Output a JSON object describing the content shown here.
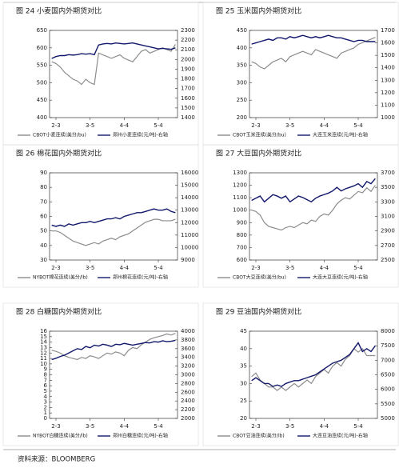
{
  "chart_data": [
    {
      "type": "line",
      "title": "图 24 小麦国内外期货对比",
      "categories": [
        null,
        "2-3",
        null,
        null,
        null,
        null,
        null,
        null,
        null,
        "3-5",
        null,
        null,
        null,
        null,
        null,
        null,
        null,
        "4-4",
        null,
        null,
        null,
        null,
        null,
        null,
        null,
        "5-4",
        null,
        null,
        null,
        null
      ],
      "series": [
        {
          "name": "CBOT小麦连续(美分/bu)",
          "color": "#8c8c8c",
          "values": [
            560,
            555,
            545,
            530,
            520,
            510,
            505,
            495,
            510,
            500,
            495,
            585,
            580,
            575,
            570,
            575,
            580,
            570,
            565,
            560,
            575,
            590,
            595,
            585,
            590,
            595,
            600,
            595,
            590,
            610
          ]
        },
        {
          "name": "郑州小麦连续(元/吨)-右轴",
          "color": "#12186b",
          "axis": "y2",
          "values": [
            2010,
            2030,
            2040,
            2040,
            2050,
            2045,
            2050,
            2060,
            2055,
            2060,
            2050,
            2150,
            2160,
            2165,
            2160,
            2170,
            2165,
            2160,
            2165,
            2170,
            2160,
            2150,
            2140,
            2130,
            2120,
            2110,
            2115,
            2110,
            2105,
            2120
          ]
        }
      ],
      "ylim": [
        400,
        650
      ],
      "yticks": [
        400,
        450,
        500,
        550,
        600,
        650
      ],
      "y2lim": [
        1400,
        2300
      ],
      "y2ticks": [
        1400,
        1500,
        1600,
        1700,
        1800,
        1900,
        2000,
        2100,
        2200,
        2300
      ]
    },
    {
      "type": "line",
      "title": "图 25 玉米国内外期货对比",
      "categories": [
        null,
        "2-3",
        null,
        null,
        null,
        null,
        null,
        null,
        null,
        "3-5",
        null,
        null,
        null,
        null,
        null,
        null,
        null,
        "4-4",
        null,
        null,
        null,
        null,
        null,
        null,
        null,
        "5-4",
        null,
        null,
        null,
        null
      ],
      "series": [
        {
          "name": "CBOT玉米连续(美分/bu)",
          "color": "#8c8c8c",
          "values": [
            360,
            355,
            345,
            340,
            350,
            360,
            365,
            370,
            360,
            375,
            380,
            385,
            390,
            385,
            380,
            395,
            390,
            385,
            380,
            375,
            370,
            385,
            390,
            395,
            400,
            410,
            415,
            420,
            425,
            430
          ]
        },
        {
          "name": "大连玉米连续(元/吨)-右轴",
          "color": "#12186b",
          "axis": "y2",
          "values": [
            1590,
            1600,
            1610,
            1620,
            1630,
            1620,
            1640,
            1640,
            1630,
            1650,
            1640,
            1650,
            1660,
            1650,
            1640,
            1650,
            1640,
            1650,
            1660,
            1650,
            1640,
            1640,
            1630,
            1620,
            1610,
            1620,
            1620,
            1610,
            1610,
            1610
          ]
        }
      ],
      "ylim": [
        200,
        450
      ],
      "yticks": [
        200,
        250,
        300,
        350,
        400,
        450
      ],
      "y2lim": [
        1000,
        1700
      ],
      "y2ticks": [
        1000,
        1100,
        1200,
        1300,
        1400,
        1500,
        1600,
        1700
      ]
    },
    {
      "type": "line",
      "title": "图 26 棉花国内外期货对比",
      "categories": [
        null,
        "2-3",
        null,
        null,
        null,
        null,
        null,
        null,
        null,
        "3-5",
        null,
        null,
        null,
        null,
        null,
        null,
        null,
        "4-4",
        null,
        null,
        null,
        null,
        null,
        null,
        null,
        "5-4",
        null,
        null,
        null,
        null
      ],
      "series": [
        {
          "name": "NYBOT棉花连续(美分/lb)",
          "color": "#8c8c8c",
          "values": [
            50,
            50,
            49,
            47,
            45,
            43,
            42,
            41,
            40,
            41,
            42,
            41,
            43,
            44,
            45,
            44,
            46,
            47,
            48,
            50,
            52,
            54,
            56,
            57,
            58,
            58,
            57,
            57,
            57,
            58
          ]
        },
        {
          "name": "郑州棉花连续(元/吨)-右轴",
          "color": "#12186b",
          "axis": "y2",
          "values": [
            11800,
            11700,
            11800,
            11700,
            11900,
            11800,
            11900,
            12000,
            12000,
            12100,
            12000,
            12100,
            12200,
            12300,
            12300,
            12400,
            12300,
            12500,
            12600,
            12700,
            12800,
            12800,
            12900,
            13000,
            13100,
            13000,
            13000,
            13100,
            12900,
            12800
          ]
        }
      ],
      "ylim": [
        30,
        90
      ],
      "yticks": [
        30,
        40,
        50,
        60,
        70,
        80,
        90
      ],
      "y2lim": [
        9000,
        16000
      ],
      "y2ticks": [
        9000,
        10000,
        11000,
        12000,
        13000,
        14000,
        15000,
        16000
      ]
    },
    {
      "type": "line",
      "title": "图 27 大豆国内外期货对比",
      "categories": [
        null,
        "2-3",
        null,
        null,
        null,
        null,
        null,
        null,
        null,
        "3-5",
        null,
        null,
        null,
        null,
        null,
        null,
        null,
        "4-4",
        null,
        null,
        null,
        null,
        null,
        null,
        null,
        "5-4",
        null,
        null,
        null,
        null
      ],
      "series": [
        {
          "name": "CBOT大豆连续(美分/bu)",
          "color": "#8c8c8c",
          "values": [
            1000,
            990,
            960,
            900,
            870,
            860,
            850,
            840,
            860,
            870,
            860,
            880,
            900,
            890,
            920,
            910,
            950,
            970,
            960,
            1000,
            1050,
            1080,
            1100,
            1090,
            1120,
            1150,
            1140,
            1180,
            1150,
            1200
          ]
        },
        {
          "name": "大连大豆连续(元/吨)-右轴",
          "color": "#12186b",
          "axis": "y2",
          "values": [
            3320,
            3350,
            3380,
            3300,
            3350,
            3400,
            3380,
            3350,
            3380,
            3300,
            3340,
            3380,
            3360,
            3330,
            3300,
            3350,
            3380,
            3400,
            3420,
            3450,
            3500,
            3450,
            3480,
            3500,
            3520,
            3550,
            3500,
            3580,
            3550,
            3620
          ]
        }
      ],
      "ylim": [
        600,
        1300
      ],
      "yticks": [
        600,
        700,
        800,
        900,
        1000,
        1100,
        1200,
        1300
      ],
      "y2lim": [
        2500,
        3700
      ],
      "y2ticks": [
        2500,
        2700,
        2900,
        3100,
        3300,
        3500,
        3700
      ]
    },
    {
      "type": "line",
      "title": "图 28 白糖国内外期货对比",
      "categories": [
        null,
        "2-3",
        null,
        null,
        null,
        null,
        null,
        null,
        null,
        "3-5",
        null,
        null,
        null,
        null,
        null,
        null,
        null,
        "4-4",
        null,
        null,
        null,
        null,
        null,
        null,
        null,
        "5-4",
        null,
        null,
        null,
        null
      ],
      "series": [
        {
          "name": "NYBOT白糖连续(美分/lb)",
          "color": "#8c8c8c",
          "values": [
            12.5,
            12.3,
            12.0,
            11.5,
            11.2,
            11.0,
            10.8,
            11.2,
            11.0,
            11.5,
            11.3,
            11.0,
            11.5,
            12.0,
            11.8,
            12.2,
            12.0,
            11.5,
            12.5,
            13.0,
            12.8,
            13.5,
            14.0,
            14.5,
            14.8,
            15.0,
            15.2,
            15.5,
            15.3,
            15.6
          ]
        },
        {
          "name": "郑州白糖连续(元/吨)-右轴",
          "color": "#12186b",
          "axis": "y2",
          "values": [
            3350,
            3380,
            3420,
            3450,
            3500,
            3550,
            3600,
            3580,
            3650,
            3620,
            3680,
            3660,
            3700,
            3680,
            3650,
            3700,
            3690,
            3720,
            3700,
            3680,
            3700,
            3720,
            3740,
            3730,
            3760,
            3750,
            3780,
            3760,
            3770,
            3790
          ]
        }
      ],
      "ylim": [
        0,
        16
      ],
      "yticks": [
        0,
        1,
        2,
        3,
        4,
        5,
        6,
        7,
        8,
        9,
        10,
        11,
        12,
        13,
        14,
        15,
        16
      ],
      "y2lim": [
        2000,
        4000
      ],
      "y2ticks": [
        2000,
        2200,
        2400,
        2600,
        2800,
        3000,
        3200,
        3400,
        3600,
        3800,
        4000
      ]
    },
    {
      "type": "line",
      "title": "图 29 豆油国内外期货对比",
      "categories": [
        null,
        "2-3",
        null,
        null,
        null,
        null,
        null,
        null,
        null,
        "3-5",
        null,
        null,
        null,
        null,
        null,
        null,
        null,
        "4-4",
        null,
        null,
        null,
        null,
        null,
        null,
        null,
        "5-4",
        null,
        null,
        null,
        null
      ],
      "series": [
        {
          "name": "CBOT豆油连续(美分/lb)",
          "color": "#8c8c8c",
          "values": [
            32,
            33,
            31,
            30,
            29,
            29,
            28,
            29,
            28,
            29,
            30,
            29,
            30,
            31,
            30,
            32,
            33,
            34,
            33,
            35,
            36,
            35,
            37,
            38,
            40,
            39,
            40,
            38,
            38,
            38
          ]
        },
        {
          "name": "大连豆油连续(元/吨)-右轴",
          "color": "#12186b",
          "axis": "y2",
          "values": [
            6300,
            6400,
            6300,
            6200,
            6200,
            6100,
            6150,
            6100,
            6200,
            6250,
            6300,
            6300,
            6350,
            6400,
            6450,
            6500,
            6600,
            6700,
            6800,
            6900,
            6950,
            7000,
            7100,
            7200,
            7400,
            7600,
            7300,
            7400,
            7300,
            7500
          ]
        }
      ],
      "ylim": [
        20,
        45
      ],
      "yticks": [
        20,
        25,
        30,
        35,
        40,
        45
      ],
      "y2lim": [
        5000,
        8000
      ],
      "y2ticks": [
        5000,
        5500,
        6000,
        6500,
        7000,
        7500,
        8000
      ]
    }
  ],
  "source": "资料来源：BLOOMBERG"
}
